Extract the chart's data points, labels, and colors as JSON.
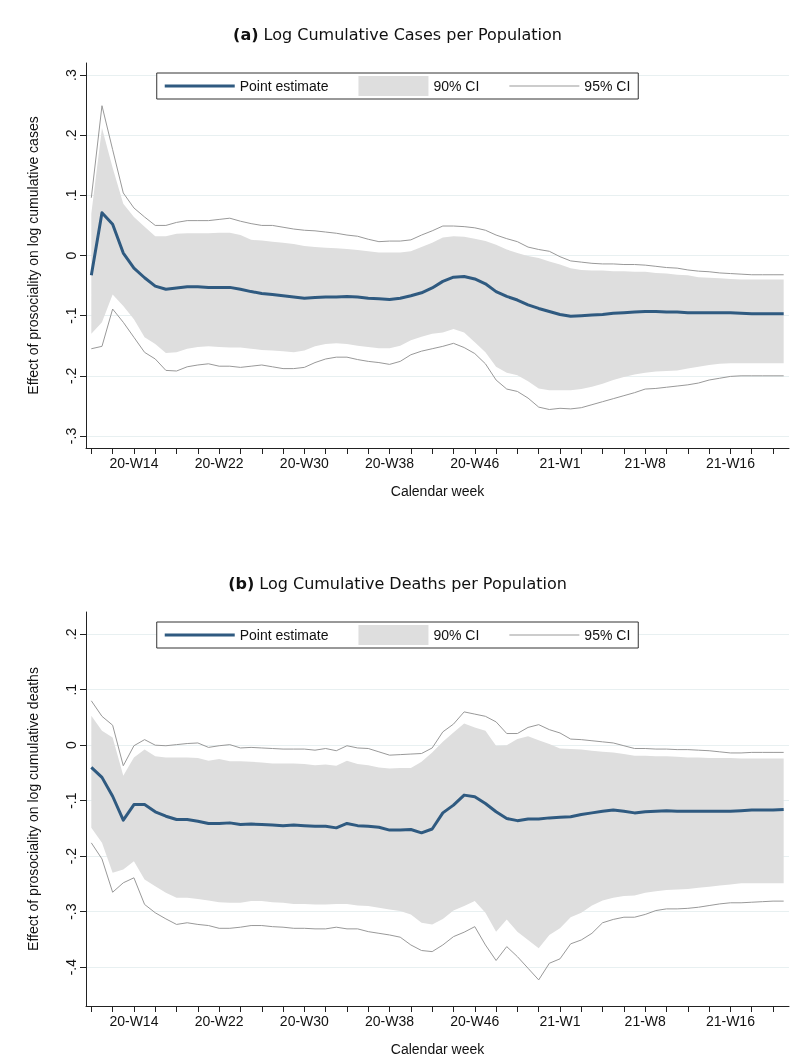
{
  "chart_data": [
    {
      "type": "line",
      "title": "(a) Log Cumulative Cases per Population",
      "xlabel": "Calendar week",
      "ylabel": "Effect of prosociality on log cumulative cases",
      "categories": [
        null,
        null,
        null,
        null,
        "20-W14",
        null,
        null,
        null,
        null,
        null,
        null,
        null,
        "20-W22",
        null,
        null,
        null,
        null,
        null,
        null,
        null,
        "20-W30",
        null,
        null,
        null,
        null,
        null,
        null,
        null,
        "20-W38",
        null,
        null,
        null,
        null,
        null,
        null,
        null,
        "20-W46",
        null,
        null,
        null,
        null,
        null,
        null,
        null,
        "21-W1",
        null,
        null,
        null,
        null,
        null,
        null,
        null,
        "21-W8",
        null,
        null,
        null,
        null,
        null,
        null,
        null,
        "21-W16",
        null,
        null,
        null,
        null,
        null
      ],
      "ylim": [
        -0.32,
        0.32
      ],
      "yticks": [
        {
          "value": 0.3,
          "label": ".3"
        },
        {
          "value": 0.2,
          "label": ".2"
        },
        {
          "value": 0.1,
          "label": ".1"
        },
        0,
        {
          "value": -0.1,
          "label": "-.1"
        },
        {
          "value": -0.2,
          "label": "-.2"
        },
        {
          "value": -0.3,
          "label": "-.3"
        }
      ],
      "grid": "y",
      "legend": "top",
      "marker": "none",
      "series": [
        {
          "name": "Point estimate",
          "color": "#2f5a80",
          "values": [
            -0.033,
            0.071,
            0.052,
            0.004,
            -0.021,
            -0.037,
            -0.051,
            -0.056,
            -0.054,
            -0.052,
            -0.052,
            -0.053,
            -0.053,
            -0.053,
            -0.056,
            -0.06,
            -0.063,
            -0.065,
            -0.067,
            -0.069,
            -0.071,
            -0.07,
            -0.069,
            -0.069,
            -0.068,
            -0.069,
            -0.071,
            -0.072,
            -0.073,
            -0.071,
            -0.067,
            -0.062,
            -0.054,
            -0.043,
            -0.036,
            -0.035,
            -0.039,
            -0.047,
            -0.06,
            -0.068,
            -0.074,
            -0.082,
            -0.088,
            -0.093,
            -0.098,
            -0.101,
            -0.1,
            -0.099,
            -0.098,
            -0.096,
            -0.095,
            -0.094,
            -0.093,
            -0.093,
            -0.094,
            -0.094,
            -0.095,
            -0.095,
            -0.095,
            -0.095,
            -0.095,
            -0.096,
            -0.097,
            -0.097,
            -0.097,
            -0.097
          ]
        },
        {
          "name": "90% CI",
          "color": "#dedede",
          "values": [
            null,
            null,
            null,
            null,
            null,
            null,
            null,
            null,
            null,
            null,
            null,
            null,
            null,
            null,
            null,
            null,
            null,
            null,
            null,
            null,
            null,
            null,
            null,
            null,
            null,
            null,
            null,
            null,
            null,
            null,
            null,
            null,
            null,
            null,
            null,
            null,
            null,
            null,
            null,
            null,
            null,
            null,
            null,
            null,
            null,
            null,
            null,
            null,
            null,
            null,
            null,
            null,
            null,
            null,
            null,
            null,
            null,
            null,
            null,
            null,
            null,
            null,
            null,
            null,
            null,
            null
          ],
          "upper": [
            0.07,
            0.212,
            0.146,
            0.086,
            0.064,
            0.048,
            0.032,
            0.032,
            0.036,
            0.037,
            0.037,
            0.037,
            0.038,
            0.038,
            0.034,
            0.026,
            0.025,
            0.023,
            0.021,
            0.019,
            0.016,
            0.014,
            0.013,
            0.012,
            0.011,
            0.009,
            0.007,
            0.005,
            0.005,
            0.005,
            0.007,
            0.014,
            0.021,
            0.03,
            0.032,
            0.031,
            0.028,
            0.024,
            0.018,
            0.01,
            0.004,
            -0.001,
            -0.004,
            -0.01,
            -0.015,
            -0.021,
            -0.024,
            -0.025,
            -0.025,
            -0.026,
            -0.026,
            -0.027,
            -0.027,
            -0.029,
            -0.03,
            -0.032,
            -0.033,
            -0.036,
            -0.037,
            -0.038,
            -0.039,
            -0.04,
            -0.04,
            -0.04,
            -0.04,
            -0.04
          ],
          "lower": [
            -0.13,
            -0.111,
            -0.065,
            -0.084,
            -0.106,
            -0.136,
            -0.147,
            -0.162,
            -0.161,
            -0.155,
            -0.152,
            -0.151,
            -0.152,
            -0.153,
            -0.153,
            -0.155,
            -0.157,
            -0.158,
            -0.159,
            -0.161,
            -0.158,
            -0.151,
            -0.147,
            -0.146,
            -0.147,
            -0.15,
            -0.152,
            -0.154,
            -0.154,
            -0.15,
            -0.141,
            -0.135,
            -0.13,
            -0.128,
            -0.122,
            -0.128,
            -0.144,
            -0.161,
            -0.185,
            -0.195,
            -0.199,
            -0.209,
            -0.221,
            -0.224,
            -0.224,
            -0.224,
            -0.222,
            -0.218,
            -0.213,
            -0.207,
            -0.202,
            -0.198,
            -0.195,
            -0.193,
            -0.192,
            -0.191,
            -0.188,
            -0.185,
            -0.182,
            -0.18,
            -0.179,
            -0.179,
            -0.179,
            -0.179,
            -0.179,
            -0.179
          ]
        },
        {
          "name": "95% CI",
          "color": "#999999",
          "values": [
            0.096,
            0.249,
            0.176,
            0.104,
            0.079,
            0.064,
            0.05,
            0.05,
            0.055,
            0.058,
            0.058,
            0.058,
            0.06,
            0.062,
            0.057,
            0.053,
            0.05,
            0.05,
            0.047,
            0.044,
            0.042,
            0.041,
            0.039,
            0.037,
            0.034,
            0.032,
            0.027,
            0.023,
            0.024,
            0.024,
            0.026,
            0.034,
            0.041,
            0.049,
            0.049,
            0.048,
            0.046,
            0.042,
            0.034,
            0.028,
            0.023,
            0.014,
            0.01,
            0.007,
            -0.002,
            -0.009,
            -0.011,
            -0.013,
            -0.014,
            -0.014,
            -0.015,
            -0.015,
            -0.016,
            -0.018,
            -0.02,
            -0.021,
            -0.024,
            -0.026,
            -0.027,
            -0.029,
            -0.03,
            -0.031,
            -0.032,
            -0.032,
            -0.032,
            -0.032
          ]
        },
        {
          "color": "#999999",
          "values": [
            -0.155,
            -0.151,
            -0.089,
            -0.111,
            -0.136,
            -0.161,
            -0.172,
            -0.191,
            -0.192,
            -0.185,
            -0.182,
            -0.18,
            -0.184,
            -0.184,
            -0.186,
            -0.184,
            -0.182,
            -0.185,
            -0.188,
            -0.188,
            -0.186,
            -0.178,
            -0.172,
            -0.169,
            -0.169,
            -0.173,
            -0.176,
            -0.178,
            -0.181,
            -0.176,
            -0.165,
            -0.159,
            -0.155,
            -0.151,
            -0.146,
            -0.153,
            -0.163,
            -0.18,
            -0.207,
            -0.222,
            -0.226,
            -0.237,
            -0.252,
            -0.256,
            -0.254,
            -0.255,
            -0.253,
            -0.248,
            -0.243,
            -0.238,
            -0.233,
            -0.228,
            -0.222,
            -0.221,
            -0.219,
            -0.217,
            -0.215,
            -0.212,
            -0.207,
            -0.204,
            -0.201,
            -0.2,
            -0.2,
            -0.2,
            -0.2,
            -0.2
          ]
        }
      ]
    },
    {
      "type": "line",
      "title": "(b) Log Cumulative Deaths per Population",
      "xlabel": "Calendar week",
      "ylabel": "Effect of prosociality on log cumulative deaths",
      "categories": [
        null,
        null,
        null,
        null,
        "20-W14",
        null,
        null,
        null,
        null,
        null,
        null,
        null,
        "20-W22",
        null,
        null,
        null,
        null,
        null,
        null,
        null,
        "20-W30",
        null,
        null,
        null,
        null,
        null,
        null,
        null,
        "20-W38",
        null,
        null,
        null,
        null,
        null,
        null,
        null,
        "20-W46",
        null,
        null,
        null,
        null,
        null,
        null,
        null,
        "21-W1",
        null,
        null,
        null,
        null,
        null,
        null,
        null,
        "21-W8",
        null,
        null,
        null,
        null,
        null,
        null,
        null,
        "21-W16",
        null,
        null,
        null,
        null,
        null
      ],
      "ylim": [
        -0.47,
        0.24
      ],
      "yticks": [
        {
          "value": 0.2,
          "label": ".2"
        },
        {
          "value": 0.1,
          "label": ".1"
        },
        0,
        {
          "value": -0.1,
          "label": "-.1"
        },
        {
          "value": -0.2,
          "label": "-.2"
        },
        {
          "value": -0.3,
          "label": "-.3"
        },
        {
          "value": -0.4,
          "label": "-.4"
        }
      ],
      "grid": "y",
      "legend": "top",
      "marker": "none",
      "series": [
        {
          "name": "Point estimate",
          "color": "#2f5a80",
          "values": [
            -0.04,
            -0.058,
            -0.092,
            -0.135,
            -0.107,
            -0.107,
            -0.12,
            -0.128,
            -0.134,
            -0.134,
            -0.137,
            -0.141,
            -0.141,
            -0.14,
            -0.143,
            -0.142,
            -0.143,
            -0.144,
            -0.145,
            -0.144,
            -0.145,
            -0.146,
            -0.146,
            -0.149,
            -0.141,
            -0.145,
            -0.146,
            -0.148,
            -0.153,
            -0.153,
            -0.152,
            -0.158,
            -0.151,
            -0.122,
            -0.108,
            -0.09,
            -0.093,
            -0.105,
            -0.12,
            -0.132,
            -0.136,
            -0.133,
            -0.133,
            -0.131,
            -0.13,
            -0.129,
            -0.125,
            -0.122,
            -0.119,
            -0.117,
            -0.119,
            -0.122,
            -0.12,
            -0.119,
            -0.118,
            -0.119,
            -0.119,
            -0.119,
            -0.119,
            -0.119,
            -0.119,
            -0.118,
            -0.117,
            -0.117,
            -0.117,
            -0.116
          ]
        },
        {
          "name": "90% CI",
          "color": "#dedede",
          "values": [
            null,
            null,
            null,
            null,
            null,
            null,
            null,
            null,
            null,
            null,
            null,
            null,
            null,
            null,
            null,
            null,
            null,
            null,
            null,
            null,
            null,
            null,
            null,
            null,
            null,
            null,
            null,
            null,
            null,
            null,
            null,
            null,
            null,
            null,
            null,
            null,
            null,
            null,
            null,
            null,
            null,
            null,
            null,
            null,
            null,
            null,
            null,
            null,
            null,
            null,
            null,
            null,
            null,
            null,
            null,
            null,
            null,
            null,
            null,
            null,
            null,
            null,
            null,
            null,
            null,
            null
          ],
          "upper": [
            0.053,
            0.026,
            0.014,
            -0.055,
            -0.022,
            -0.008,
            -0.02,
            -0.022,
            -0.022,
            -0.022,
            -0.023,
            -0.028,
            -0.025,
            -0.029,
            -0.029,
            -0.03,
            -0.031,
            -0.033,
            -0.033,
            -0.033,
            -0.034,
            -0.036,
            -0.035,
            -0.037,
            -0.028,
            -0.034,
            -0.036,
            -0.04,
            -0.042,
            -0.041,
            -0.041,
            -0.03,
            -0.013,
            0.006,
            0.023,
            0.039,
            0.032,
            0.026,
            -0.001,
            0.0,
            0.011,
            0.016,
            0.009,
            0.002,
            -0.006,
            -0.007,
            -0.008,
            -0.01,
            -0.012,
            -0.013,
            -0.016,
            -0.019,
            -0.019,
            -0.02,
            -0.02,
            -0.021,
            -0.022,
            -0.022,
            -0.023,
            -0.023,
            -0.023,
            -0.024,
            -0.024,
            -0.024,
            -0.024,
            -0.024
          ],
          "lower": [
            -0.149,
            -0.176,
            -0.23,
            -0.224,
            -0.209,
            -0.242,
            -0.254,
            -0.266,
            -0.275,
            -0.275,
            -0.277,
            -0.28,
            -0.283,
            -0.284,
            -0.284,
            -0.281,
            -0.281,
            -0.283,
            -0.284,
            -0.286,
            -0.286,
            -0.287,
            -0.287,
            -0.286,
            -0.286,
            -0.289,
            -0.29,
            -0.293,
            -0.296,
            -0.299,
            -0.305,
            -0.32,
            -0.323,
            -0.313,
            -0.298,
            -0.29,
            -0.281,
            -0.302,
            -0.336,
            -0.314,
            -0.336,
            -0.351,
            -0.366,
            -0.342,
            -0.33,
            -0.31,
            -0.302,
            -0.289,
            -0.28,
            -0.275,
            -0.272,
            -0.271,
            -0.266,
            -0.263,
            -0.261,
            -0.26,
            -0.259,
            -0.257,
            -0.255,
            -0.253,
            -0.251,
            -0.249,
            -0.249,
            -0.249,
            -0.249,
            -0.249
          ]
        },
        {
          "name": "95% CI",
          "color": "#999999",
          "values": [
            0.08,
            0.052,
            0.036,
            -0.037,
            -0.001,
            0.01,
            0.0,
            -0.001,
            0.001,
            0.003,
            0.004,
            -0.004,
            -0.001,
            0.001,
            -0.005,
            -0.004,
            -0.005,
            -0.006,
            -0.007,
            -0.007,
            -0.007,
            -0.009,
            -0.006,
            -0.01,
            -0.001,
            -0.005,
            -0.006,
            -0.012,
            -0.018,
            -0.017,
            -0.016,
            -0.015,
            -0.005,
            0.024,
            0.038,
            0.06,
            0.056,
            0.052,
            0.042,
            0.021,
            0.021,
            0.032,
            0.037,
            0.028,
            0.022,
            0.011,
            0.01,
            0.008,
            0.006,
            0.004,
            -0.001,
            -0.006,
            -0.006,
            -0.007,
            -0.007,
            -0.008,
            -0.008,
            -0.009,
            -0.01,
            -0.012,
            -0.014,
            -0.014,
            -0.013,
            -0.013,
            -0.013,
            -0.013
          ]
        },
        {
          "color": "#999999",
          "values": [
            -0.176,
            -0.205,
            -0.265,
            -0.248,
            -0.239,
            -0.287,
            -0.302,
            -0.313,
            -0.323,
            -0.32,
            -0.323,
            -0.325,
            -0.33,
            -0.33,
            -0.328,
            -0.325,
            -0.325,
            -0.327,
            -0.328,
            -0.33,
            -0.33,
            -0.331,
            -0.331,
            -0.328,
            -0.331,
            -0.331,
            -0.336,
            -0.339,
            -0.342,
            -0.346,
            -0.36,
            -0.37,
            -0.372,
            -0.36,
            -0.345,
            -0.337,
            -0.327,
            -0.36,
            -0.388,
            -0.363,
            -0.381,
            -0.402,
            -0.423,
            -0.393,
            -0.385,
            -0.358,
            -0.351,
            -0.339,
            -0.32,
            -0.314,
            -0.31,
            -0.31,
            -0.305,
            -0.298,
            -0.295,
            -0.295,
            -0.294,
            -0.292,
            -0.289,
            -0.286,
            -0.284,
            -0.284,
            -0.283,
            -0.282,
            -0.281,
            -0.281
          ]
        }
      ]
    }
  ]
}
